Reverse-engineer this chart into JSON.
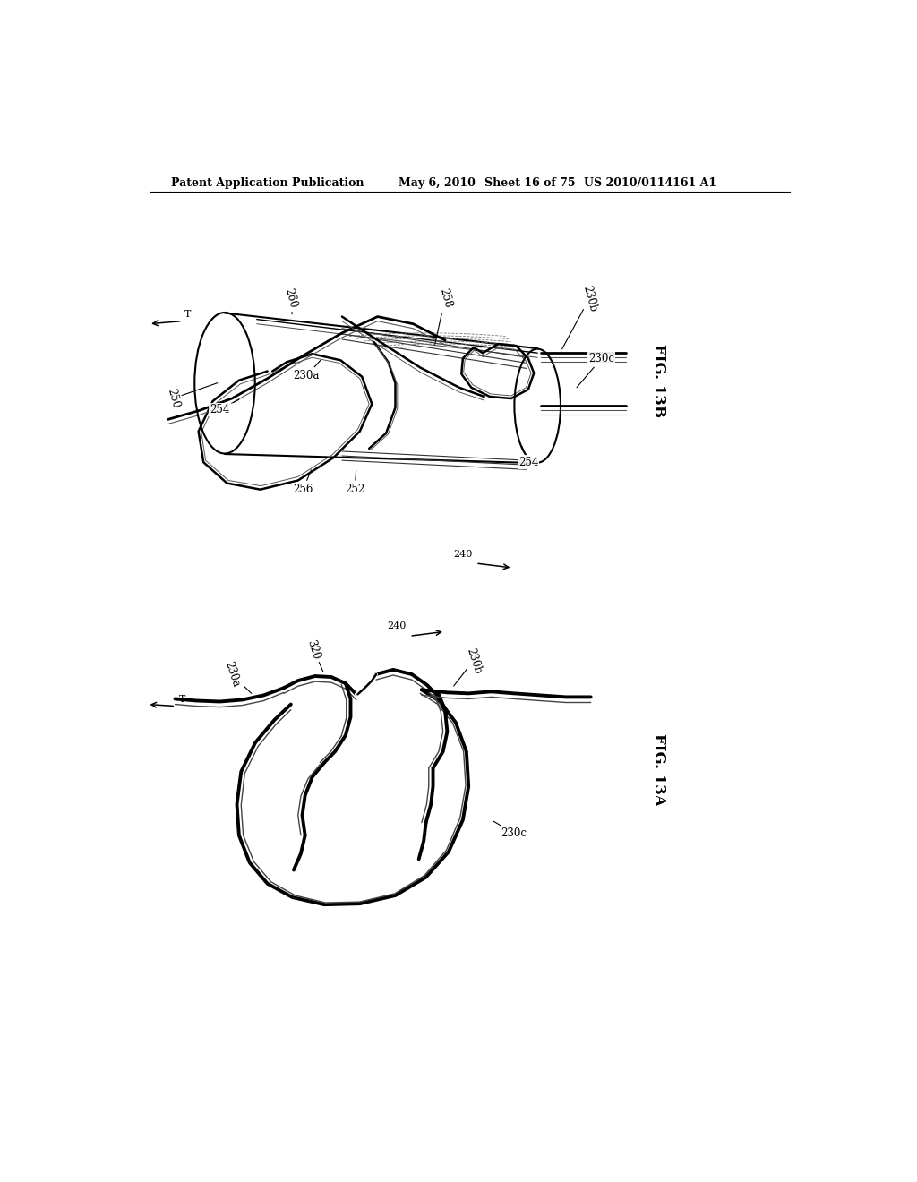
{
  "background_color": "#ffffff",
  "header_text": "Patent Application Publication",
  "header_date": "May 6, 2010",
  "header_sheet": "Sheet 16 of 75",
  "header_patent": "US 2010/0114161 A1",
  "fig13b_label": "FIG. 13B",
  "fig13a_label": "FIG. 13A"
}
